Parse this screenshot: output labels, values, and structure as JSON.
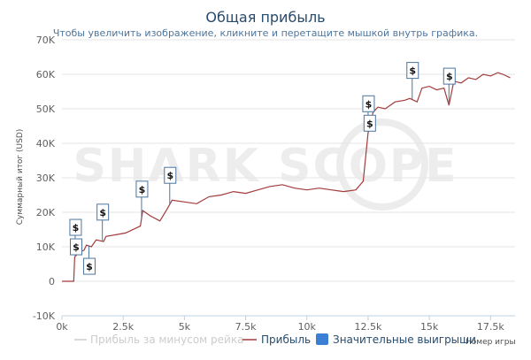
{
  "title": "Общая прибыль",
  "subtitle": "Чтобы увеличить изображение, кликните и перетащите мышкой внутрь графика.",
  "watermark": "SHARK SCOPE",
  "colors": {
    "profit": "#a23b3b",
    "rake": "#cccccc",
    "wins": "#3a7fd5",
    "title": "#274b6d",
    "grid": "#e6e6e6"
  },
  "chart_data": {
    "type": "line",
    "title": "Общая прибыль",
    "ylabel": "Суммарный итог (USD)",
    "xlabel": "Номер игры",
    "xlim": [
      0,
      18500
    ],
    "ylim": [
      -10000,
      70000
    ],
    "x_ticks": [
      0,
      2500,
      5000,
      7500,
      10000,
      12500,
      15000,
      17500
    ],
    "x_tick_labels": [
      "0k",
      "2.5k",
      "5k",
      "7.5k",
      "10k",
      "12.5k",
      "15k",
      "17.5k"
    ],
    "y_ticks": [
      -10000,
      0,
      10000,
      20000,
      30000,
      40000,
      50000,
      60000,
      70000
    ],
    "y_tick_labels": [
      "-10K",
      "0",
      "10K",
      "20K",
      "30K",
      "40K",
      "50K",
      "60K",
      "70K"
    ],
    "grid": true,
    "legend_position": "bottom",
    "legend": [
      "Прибыль за минусом рейка",
      "Прибыль",
      "Значительные выигрыши"
    ],
    "series": [
      {
        "name": "Прибыль",
        "x": [
          0,
          300,
          480,
          520,
          700,
          900,
          1000,
          1200,
          1400,
          1700,
          1800,
          2200,
          2600,
          3200,
          3300,
          3600,
          4000,
          4300,
          4500,
          5000,
          5500,
          6000,
          6500,
          7000,
          7500,
          8000,
          8500,
          9000,
          9500,
          10000,
          10500,
          11000,
          11500,
          12000,
          12300,
          12500,
          12550,
          12700,
          12900,
          13200,
          13600,
          14000,
          14200,
          14500,
          14700,
          15000,
          15300,
          15600,
          15800,
          16000,
          16300,
          16600,
          16900,
          17200,
          17500,
          17800,
          18000,
          18300
        ],
        "y": [
          0,
          0,
          0,
          7000,
          8500,
          9000,
          10500,
          10000,
          12000,
          11500,
          13000,
          13500,
          14000,
          16000,
          20500,
          19000,
          17500,
          21000,
          23500,
          23000,
          22500,
          24500,
          25000,
          26000,
          25500,
          26500,
          27500,
          28000,
          27000,
          26500,
          27000,
          26500,
          26000,
          26500,
          29000,
          43000,
          44000,
          49000,
          50500,
          50000,
          52000,
          52500,
          53000,
          52000,
          56000,
          56500,
          55500,
          56000,
          51000,
          58000,
          57500,
          59000,
          58500,
          60000,
          59500,
          60500,
          60000,
          59000
        ]
      }
    ],
    "significant_wins": {
      "name": "Значительные выигрыши",
      "label": "$",
      "x": [
        540,
        560,
        1100,
        1650,
        3250,
        4400,
        12500,
        12550,
        14300,
        15800
      ]
    }
  }
}
